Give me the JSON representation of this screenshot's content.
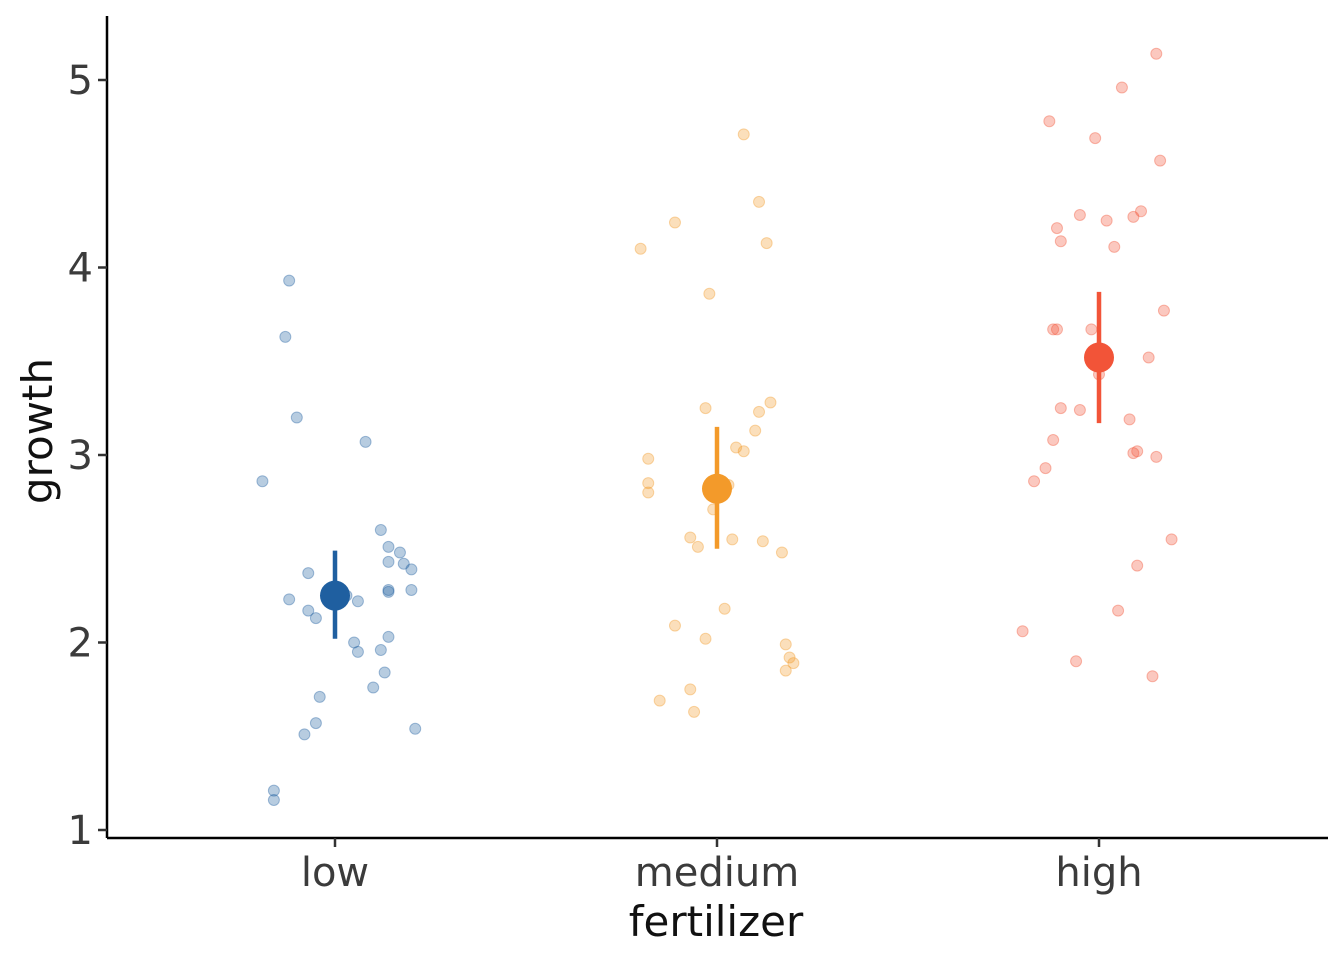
{
  "chart_data": {
    "type": "scatter",
    "title": "",
    "xlabel": "fertilizer",
    "ylabel": "growth",
    "categories": [
      "low",
      "medium",
      "high"
    ],
    "ylim": [
      0.96,
      5.36
    ],
    "yticks": [
      1,
      2,
      3,
      4,
      5
    ],
    "grid": false,
    "legend": "none",
    "series": [
      {
        "name": "low",
        "color": "#1f5fa0",
        "mean": 2.25,
        "ci": [
          2.02,
          2.49
        ],
        "jitter_x": [
          -0.19,
          -0.12,
          -0.13,
          -0.1,
          -0.07,
          -0.12,
          -0.05,
          -0.04,
          0.03,
          0.06,
          0.08,
          0.12,
          0.14,
          0.14,
          0.17,
          0.2,
          0.18,
          0.2,
          0.14,
          0.14,
          0.13,
          0.12,
          0.05,
          0.06,
          0.14,
          0.1,
          0.21,
          -0.05,
          -0.08,
          -0.16,
          -0.16,
          -0.07,
          0.0
        ],
        "points": [
          2.86,
          3.93,
          3.63,
          3.2,
          2.37,
          2.23,
          2.13,
          1.71,
          2.25,
          2.22,
          3.07,
          2.6,
          2.51,
          2.43,
          2.48,
          2.39,
          2.42,
          2.28,
          2.28,
          2.27,
          1.84,
          1.96,
          2.0,
          1.95,
          2.03,
          1.76,
          1.54,
          1.57,
          1.51,
          1.21,
          1.16,
          2.17,
          2.24
        ]
      },
      {
        "name": "medium",
        "color": "#f39a2a",
        "mean": 2.82,
        "ci": [
          2.5,
          3.15
        ],
        "jitter_x": [
          -0.2,
          -0.18,
          -0.18,
          -0.07,
          -0.02,
          0.07,
          0.11,
          0.13,
          -0.11,
          -0.03,
          0.05,
          0.07,
          0.14,
          0.11,
          0.1,
          0.17,
          -0.11,
          0.02,
          -0.03,
          0.12,
          0.18,
          0.19,
          0.18,
          -0.07,
          -0.06,
          -0.01,
          0.2,
          -0.15,
          -0.18,
          -0.05,
          0.0,
          0.03,
          0.04
        ],
        "points": [
          4.1,
          2.98,
          2.8,
          2.56,
          3.86,
          4.71,
          4.35,
          4.13,
          4.24,
          3.25,
          3.04,
          3.02,
          3.28,
          3.23,
          3.13,
          2.48,
          2.09,
          2.18,
          2.02,
          2.54,
          1.99,
          1.92,
          1.85,
          1.75,
          1.63,
          2.71,
          1.89,
          1.69,
          2.85,
          2.51,
          2.84,
          2.84,
          2.55
        ]
      },
      {
        "name": "high",
        "color": "#f25438",
        "mean": 3.52,
        "ci": [
          3.17,
          3.87
        ],
        "jitter_x": [
          -0.13,
          -0.11,
          -0.12,
          -0.05,
          -0.01,
          0.06,
          0.15,
          0.16,
          -0.1,
          -0.05,
          0.02,
          0.04,
          0.11,
          0.08,
          0.1,
          0.17,
          -0.17,
          -0.14,
          -0.12,
          -0.11,
          0.0,
          0.09,
          0.09,
          0.1,
          0.15,
          0.19,
          -0.2,
          -0.06,
          0.05,
          0.14,
          0.13,
          -0.02,
          -0.1
        ],
        "points": [
          4.78,
          4.21,
          3.67,
          4.28,
          4.69,
          4.96,
          5.14,
          4.57,
          4.14,
          3.24,
          4.25,
          4.11,
          4.3,
          3.19,
          3.02,
          3.77,
          2.86,
          2.93,
          3.08,
          3.67,
          3.43,
          4.27,
          3.01,
          2.41,
          2.99,
          2.55,
          2.06,
          1.9,
          2.17,
          1.82,
          3.52,
          3.67,
          3.25
        ]
      }
    ]
  }
}
